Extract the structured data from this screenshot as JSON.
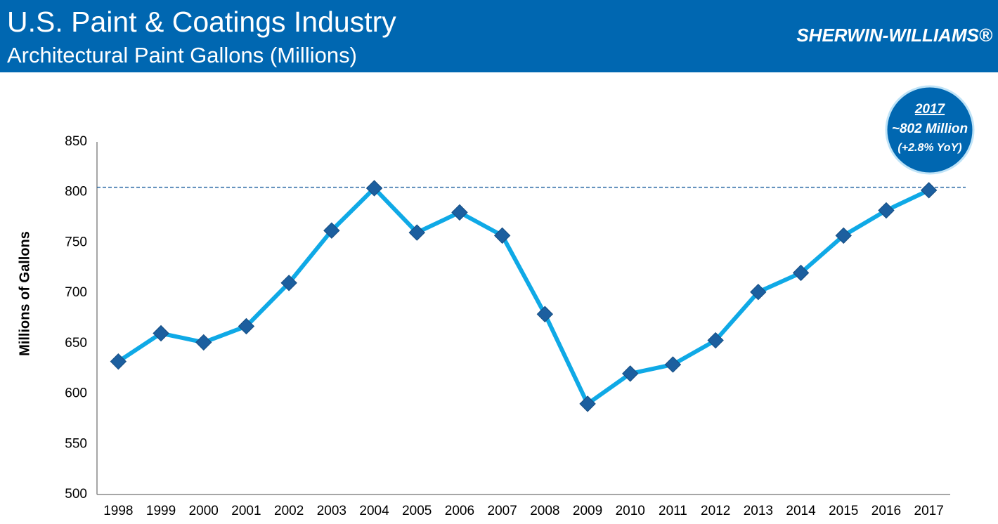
{
  "chart_data": {
    "type": "line",
    "title": "U.S. Paint & Coatings Industry",
    "subtitle": "Architectural Paint Gallons (Millions)",
    "brand": "SHERWIN-WILLIAMS®",
    "y_label": "Millions of Gallons",
    "annotation": [
      "2017",
      "~802 Million",
      "(+2.8% YoY)"
    ],
    "categories": [
      "1998",
      "1999",
      "2000",
      "2001",
      "2002",
      "2003",
      "2004",
      "2005",
      "2006",
      "2007",
      "2008",
      "2009",
      "2010",
      "2011",
      "2012",
      "2013",
      "2014",
      "2015",
      "2016",
      "2017"
    ],
    "series": [
      {
        "name": "Architectural Paint Gallons",
        "color": "#0fa9e6",
        "marker_color": "#1c5f9f",
        "values": [
          632,
          660,
          651,
          667,
          710,
          762,
          804,
          760,
          780,
          757,
          679,
          590,
          620,
          629,
          653,
          701,
          720,
          757,
          782,
          802
        ]
      }
    ],
    "reference_line": 805,
    "ylim": [
      500,
      850
    ],
    "yticks": [
      500,
      550,
      600,
      650,
      700,
      750,
      800,
      850
    ],
    "grid": false
  }
}
